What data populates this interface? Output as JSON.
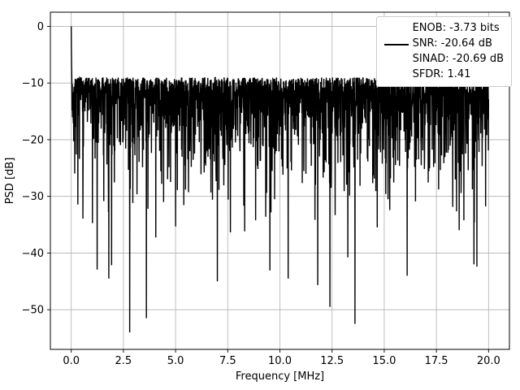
{
  "figure": {
    "background": "#ffffff",
    "frame_color": "#000000",
    "grid_color": "#b0b0b0"
  },
  "legend": {
    "lines": [
      "ENOB: -3.73 bits",
      "SNR: -20.64 dB",
      "SINAD: -20.69 dB",
      "SFDR: 1.41"
    ]
  },
  "chart_data": {
    "type": "line",
    "title": "",
    "xlabel": "Frequency [MHz]",
    "ylabel": "PSD [dB]",
    "xlim": [
      -1,
      21
    ],
    "ylim": [
      -57,
      2.5
    ],
    "x_ticks": [
      0.0,
      2.5,
      5.0,
      7.5,
      10.0,
      12.5,
      15.0,
      17.5,
      20.0
    ],
    "x_tick_labels": [
      "0.0",
      "2.5",
      "5.0",
      "7.5",
      "10.0",
      "12.5",
      "15.0",
      "17.5",
      "20.0"
    ],
    "y_ticks": [
      0,
      -10,
      -20,
      -30,
      -40,
      -50
    ],
    "y_tick_labels": [
      "0",
      "−10",
      "−20",
      "−30",
      "−40",
      "−50"
    ],
    "grid": true,
    "legend_position": "upper right",
    "series": [
      {
        "name": "psd",
        "label": "ENOB: -3.73 bits\nSNR: -20.64 dB\nSINAD: -20.69 dB\nSFDR: 1.41",
        "color": "#000000",
        "line_width": 1.4,
        "generator": {
          "kind": "seeded-log-uniform-noise",
          "seed": 7,
          "n_points": 2400,
          "x_start": 0,
          "x_end": 20,
          "base_db": -9,
          "log_coeff": 10,
          "extra_dip_prob": 0.04,
          "extra_dip_max_db": 20,
          "clip_min_db": -55,
          "dc_points_db": [
            0,
            -4.5,
            -7,
            -8.5
          ],
          "forced_nulls": [
            {
              "x": 1.8,
              "y": -44.5
            },
            {
              "x": 2.8,
              "y": -54
            },
            {
              "x": 3.6,
              "y": -51.5
            },
            {
              "x": 7.0,
              "y": -45
            },
            {
              "x": 10.4,
              "y": -44.5
            },
            {
              "x": 12.4,
              "y": -49.5
            },
            {
              "x": 13.6,
              "y": -52.5
            },
            {
              "x": 16.1,
              "y": -44
            },
            {
              "x": 19.3,
              "y": -42
            }
          ]
        },
        "summary": {
          "peak_db_at_0MHz": 0,
          "dense_noise_band_db": [
            -30,
            -10
          ],
          "deepest_null_db": -54,
          "deepest_null_MHz": 2.8
        }
      }
    ]
  }
}
